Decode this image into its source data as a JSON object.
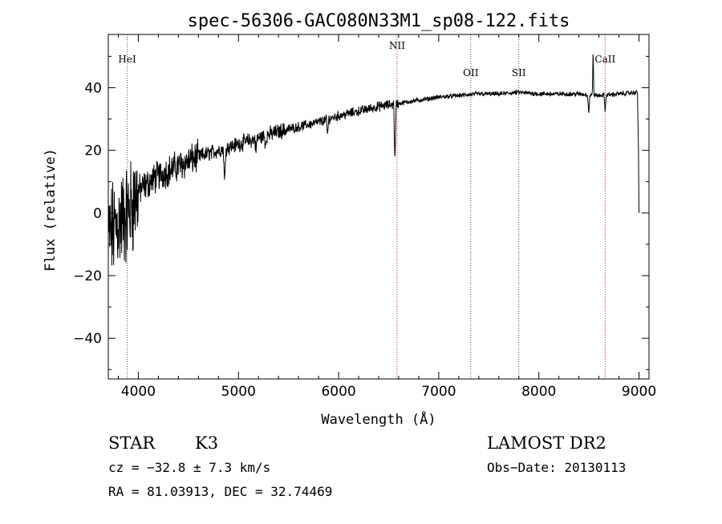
{
  "chart_data": {
    "type": "line",
    "title": "spec-56306-GAC080N33M1_sp08-122.fits",
    "xlabel": "Wavelength (Å)",
    "ylabel": "Flux (relative)",
    "xlim": [
      3700,
      9100
    ],
    "ylim": [
      -53,
      57
    ],
    "x_ticks": [
      4000,
      5000,
      6000,
      7000,
      8000,
      9000
    ],
    "x_tick_labels": [
      "4000",
      "5000",
      "6000",
      "7000",
      "8000",
      "9000"
    ],
    "y_ticks": [
      -40,
      -20,
      0,
      20,
      40
    ],
    "y_tick_labels": [
      "−40",
      "−20",
      "0",
      "20",
      "40"
    ],
    "spectrum_envelope": {
      "x": [
        3700,
        3800,
        3900,
        4000,
        4200,
        4400,
        4600,
        4800,
        5000,
        5200,
        5400,
        5600,
        5800,
        6000,
        6200,
        6400,
        6600,
        6800,
        7000,
        7200,
        7400,
        7600,
        7800,
        8000,
        8200,
        8400,
        8600,
        8800,
        8980
      ],
      "y": [
        -8,
        -3,
        0,
        7,
        12,
        15,
        18,
        20,
        22,
        24,
        26,
        27.5,
        29,
        31,
        32.5,
        34,
        35,
        36,
        37,
        37.5,
        38,
        38,
        38.5,
        38,
        38,
        38,
        37.5,
        38,
        38.5
      ]
    },
    "absorption_features": [
      {
        "x": 4861,
        "depth": 12
      },
      {
        "x": 5175,
        "depth": 4
      },
      {
        "x": 5270,
        "depth": 3
      },
      {
        "x": 5890,
        "depth": 5
      },
      {
        "x": 6563,
        "depth": 19
      },
      {
        "x": 8498,
        "depth": 6
      },
      {
        "x": 8662,
        "depth": 5
      }
    ],
    "emission_features": [
      {
        "x": 8542,
        "height": 15
      }
    ],
    "reference_lines": [
      {
        "label": "HeI",
        "x": 3889
      },
      {
        "label": "NII",
        "x": 6584
      },
      {
        "label": "OII",
        "x": 7320
      },
      {
        "label": "SII",
        "x": 7800
      },
      {
        "label": "CaII",
        "x": 8662
      }
    ]
  },
  "info": {
    "object_class": "STAR",
    "subclass": "K3",
    "survey": "LAMOST DR2",
    "redshift_text": "cz = −32.8 ± 7.3 km/s",
    "obs_date_text": "Obs−Date: 20130113",
    "coords_text": "RA =  81.03913, DEC =  32.74469"
  },
  "colors": {
    "reference_line": "#aa2222",
    "spectrum": "#000000"
  }
}
